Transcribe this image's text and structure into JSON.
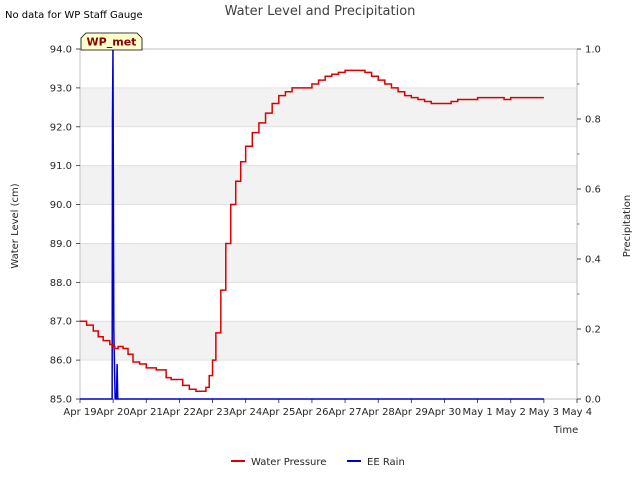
{
  "header": {
    "no_data_note": "No data for WP Staff Gauge"
  },
  "badge": {
    "label": "WP_met",
    "fill": "#ffffcc",
    "text_color": "#8b0000"
  },
  "colors": {
    "water_pressure": "#dd0000",
    "ee_rain": "#0000cc",
    "band": "#f2f2f2",
    "grid": "#dcdcdc",
    "axis": "#c0c0c0"
  },
  "chart_data": {
    "type": "line",
    "title": "Water Level and Precipitation",
    "xlabel": "Time",
    "ylabel": "Water Level (cm)",
    "y2label": "Precipitation",
    "x_ticks": [
      "Apr 19",
      "Apr 20",
      "Apr 21",
      "Apr 22",
      "Apr 23",
      "Apr 24",
      "Apr 25",
      "Apr 26",
      "Apr 27",
      "Apr 28",
      "Apr 29",
      "Apr 30",
      "May 1",
      "May 2",
      "May 3",
      "May 4"
    ],
    "x_range_days": [
      0,
      15
    ],
    "ylim": [
      85.0,
      94.0
    ],
    "y_ticks": [
      "85.0",
      "86.0",
      "87.0",
      "88.0",
      "89.0",
      "90.0",
      "91.0",
      "92.0",
      "93.0",
      "94.0"
    ],
    "y2lim": [
      0.0,
      1.0
    ],
    "y2_ticks": [
      "0.0",
      "0.2",
      "0.4",
      "0.6",
      "0.8",
      "1.0"
    ],
    "grid": true,
    "legend_placement": "bottom-center",
    "series": [
      {
        "name": "Water Pressure",
        "axis": "left",
        "x": [
          0.0,
          0.2,
          0.4,
          0.55,
          0.7,
          0.9,
          1.0,
          1.05,
          1.15,
          1.3,
          1.45,
          1.6,
          1.8,
          2.0,
          2.3,
          2.6,
          2.75,
          2.9,
          3.1,
          3.3,
          3.5,
          3.65,
          3.8,
          3.9,
          4.0,
          4.1,
          4.25,
          4.4,
          4.55,
          4.7,
          4.85,
          5.0,
          5.2,
          5.4,
          5.6,
          5.8,
          6.0,
          6.2,
          6.4,
          6.6,
          6.8,
          7.0,
          7.2,
          7.4,
          7.6,
          7.8,
          8.0,
          8.2,
          8.4,
          8.6,
          8.8,
          9.0,
          9.2,
          9.4,
          9.6,
          9.8,
          10.0,
          10.2,
          10.4,
          10.6,
          10.8,
          11.0,
          11.2,
          11.4,
          11.6,
          11.8,
          12.0,
          12.2,
          12.4,
          12.6,
          12.8,
          13.0,
          13.2,
          13.4,
          13.6,
          13.8,
          14.0
        ],
        "y": [
          87.0,
          86.9,
          86.75,
          86.6,
          86.5,
          86.4,
          86.35,
          86.3,
          86.35,
          86.3,
          86.15,
          85.95,
          85.9,
          85.8,
          85.75,
          85.55,
          85.5,
          85.5,
          85.35,
          85.25,
          85.2,
          85.2,
          85.3,
          85.6,
          86.0,
          86.7,
          87.8,
          89.0,
          90.0,
          90.6,
          91.1,
          91.5,
          91.85,
          92.1,
          92.35,
          92.6,
          92.8,
          92.9,
          93.0,
          93.0,
          93.0,
          93.1,
          93.2,
          93.3,
          93.35,
          93.4,
          93.45,
          93.45,
          93.45,
          93.4,
          93.3,
          93.2,
          93.1,
          93.0,
          92.9,
          92.8,
          92.75,
          92.7,
          92.65,
          92.6,
          92.6,
          92.6,
          92.65,
          92.7,
          92.7,
          92.7,
          92.75,
          92.75,
          92.75,
          92.75,
          92.7,
          92.75,
          92.75,
          92.75,
          92.75,
          92.75,
          92.75
        ]
      },
      {
        "name": "EE Rain",
        "axis": "right",
        "x": [
          0.0,
          0.95,
          0.97,
          0.98,
          0.995,
          1.01,
          1.02,
          1.04,
          1.06,
          1.08,
          1.1,
          1.12,
          1.14,
          1.16,
          1.18,
          1.2,
          1.25,
          14.0
        ],
        "y": [
          0.0,
          0.0,
          0.0,
          0.8,
          1.0,
          0.5,
          0.2,
          0.1,
          0.0,
          0.0,
          0.0,
          0.1,
          0.0,
          0.0,
          0.0,
          0.0,
          0.0,
          0.0
        ]
      }
    ]
  }
}
